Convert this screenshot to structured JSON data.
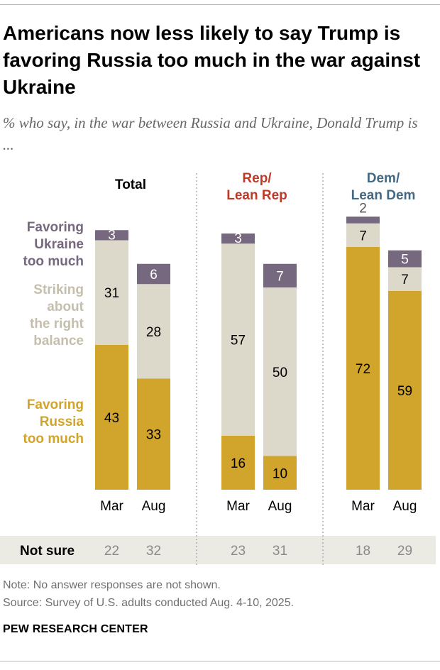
{
  "title": "Americans now less likely to say Trump is favoring Russia too much in the war against Ukraine",
  "subtitle": "% who say, in the war between Russia and Ukraine, Donald Trump is ...",
  "colors": {
    "ukraine": "#76687f",
    "balance": "#dcd9cb",
    "russia": "#d1a42b",
    "total_header": "#000000",
    "rep_header": "#bf3927",
    "dem_header": "#436983",
    "not_sure_band": "#ecebe3",
    "not_sure_value": "#8a8a8a"
  },
  "chart_data": {
    "type": "bar",
    "stacked": true,
    "title": "Americans now less likely to say Trump is favoring Russia too much in the war against Ukraine",
    "series_labels": {
      "ukraine": "Favoring Ukraine too much",
      "balance": "Striking about the right balance",
      "russia": "Favoring Russia too much"
    },
    "not_sure_label": "Not sure",
    "groups": [
      {
        "name": "Total",
        "bars": [
          {
            "label": "Mar",
            "ukraine": 3,
            "balance": 31,
            "russia": 43,
            "not_sure": 22
          },
          {
            "label": "Aug",
            "ukraine": 6,
            "balance": 28,
            "russia": 33,
            "not_sure": 32
          }
        ]
      },
      {
        "name": "Rep/ Lean Rep",
        "bars": [
          {
            "label": "Mar",
            "ukraine": 3,
            "balance": 57,
            "russia": 16,
            "not_sure": 23
          },
          {
            "label": "Aug",
            "ukraine": 7,
            "balance": 50,
            "russia": 10,
            "not_sure": 31
          }
        ]
      },
      {
        "name": "Dem/ Lean Dem",
        "bars": [
          {
            "label": "Mar",
            "ukraine": 2,
            "balance": 7,
            "russia": 72,
            "not_sure": 18
          },
          {
            "label": "Aug",
            "ukraine": 5,
            "balance": 7,
            "russia": 59,
            "not_sure": 29
          }
        ]
      }
    ]
  },
  "note": "Note: No answer responses are not shown.",
  "source": "Source: Survey of U.S. adults conducted Aug. 4-10, 2025.",
  "brand": "PEW RESEARCH CENTER"
}
